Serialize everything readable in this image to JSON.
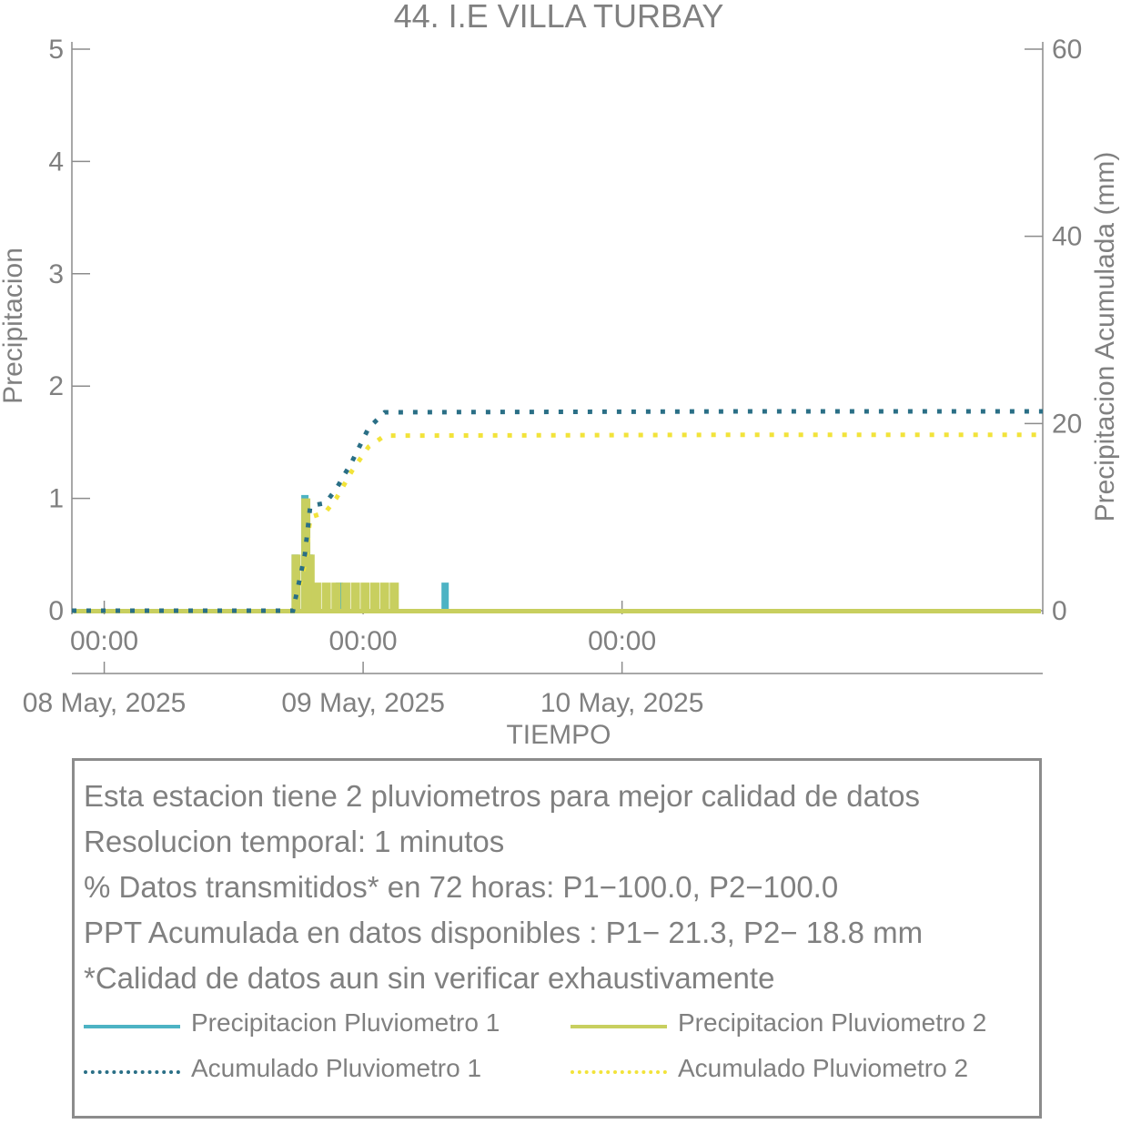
{
  "chart_data": {
    "type": "bar",
    "title": "44. I.E VILLA TURBAY",
    "xlabel": "TIEMPO",
    "ylabel": "Precipitacion",
    "y2label": "Precipitacion Acumulada (mm)",
    "ylim": [
      0,
      5
    ],
    "y2lim": [
      0,
      60
    ],
    "yticks": [
      "0",
      "1",
      "2",
      "3",
      "4",
      "5"
    ],
    "y2ticks": [
      "0",
      "20",
      "40",
      "60"
    ],
    "xlim_hours": [
      -3,
      87
    ],
    "xticks": [
      {
        "hour": 0,
        "label": "00:00",
        "date": "08 May, 2025"
      },
      {
        "hour": 24,
        "label": "00:00",
        "date": "09 May, 2025"
      },
      {
        "hour": 48,
        "label": "00:00",
        "date": "10 May, 2025"
      }
    ],
    "series": [
      {
        "name": "Precipitacion Pluviometro 1",
        "color": "#4db3c4",
        "kind": "bar",
        "points": [
          [
            17.7,
            0.5
          ],
          [
            18.6,
            1.03
          ],
          [
            19.0,
            0.5
          ],
          [
            21.8,
            0.25
          ],
          [
            31.6,
            0.25
          ]
        ]
      },
      {
        "name": "Precipitacion Pluviometro 2",
        "color": "#c8cf5f",
        "kind": "bar",
        "points": [
          [
            17.7,
            0.5
          ],
          [
            18.6,
            1.0
          ],
          [
            19.0,
            0.5
          ],
          [
            19.6,
            0.25
          ],
          [
            20.5,
            0.25
          ],
          [
            21.4,
            0.25
          ],
          [
            22.3,
            0.25
          ],
          [
            23.2,
            0.25
          ],
          [
            24.1,
            0.25
          ],
          [
            25.0,
            0.25
          ],
          [
            25.9,
            0.25
          ],
          [
            26.8,
            0.25
          ]
        ]
      },
      {
        "name": "Acumulado Pluviometro 1",
        "color": "#2a6f86",
        "kind": "line",
        "points": [
          [
            -3,
            0
          ],
          [
            17.5,
            0
          ],
          [
            18.6,
            6
          ],
          [
            19.1,
            11.2
          ],
          [
            20.5,
            11.5
          ],
          [
            21.5,
            13
          ],
          [
            23,
            16
          ],
          [
            24.5,
            19.5
          ],
          [
            26,
            21.2
          ],
          [
            60,
            21.3
          ],
          [
            87,
            21.3
          ]
        ]
      },
      {
        "name": "Acumulado Pluviometro 2",
        "color": "#f2e33a",
        "kind": "line",
        "points": [
          [
            -3,
            0
          ],
          [
            17.5,
            0
          ],
          [
            18.6,
            5
          ],
          [
            19.1,
            10.0
          ],
          [
            20.5,
            10.5
          ],
          [
            21.5,
            12
          ],
          [
            23,
            15
          ],
          [
            24.5,
            17.5
          ],
          [
            26,
            18.7
          ],
          [
            60,
            18.8
          ],
          [
            87,
            18.8
          ]
        ]
      }
    ]
  },
  "info": {
    "lines": [
      "Esta estacion tiene 2 pluviometros para mejor calidad de datos",
      "Resolucion temporal: 1 minutos",
      "% Datos transmitidos* en 72 horas: P1−100.0, P2−100.0",
      "PPT Acumulada en datos disponibles : P1− 21.3, P2− 18.8 mm",
      "*Calidad de datos aun sin verificar exhaustivamente"
    ]
  },
  "legend": [
    {
      "label": "Precipitacion Pluviometro 1",
      "color": "#4db3c4",
      "style": "solid"
    },
    {
      "label": "Precipitacion Pluviometro 2",
      "color": "#c8cf5f",
      "style": "solid"
    },
    {
      "label": "Acumulado Pluviometro 1",
      "color": "#2a6f86",
      "style": "dotted"
    },
    {
      "label": "Acumulado Pluviometro 2",
      "color": "#f2e33a",
      "style": "dotted"
    }
  ]
}
